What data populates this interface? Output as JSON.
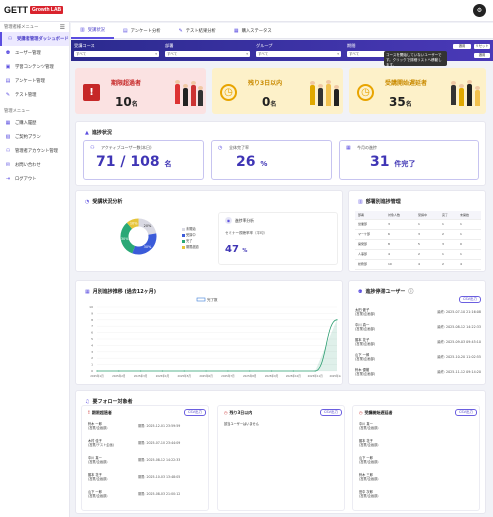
{
  "header": {
    "logo": "GETT",
    "logo_badge": "Growth LAB",
    "avatar": "⚙"
  },
  "sidebar": {
    "section1": "管理者様メニュー",
    "items": [
      {
        "label": "受講者管理ダッシュボード",
        "icon": "⚇"
      },
      {
        "label": "ユーザー管理",
        "icon": "⚉"
      },
      {
        "label": "学習コンテンツ管理",
        "icon": "▣"
      },
      {
        "label": "アンケート管理",
        "icon": "▤"
      },
      {
        "label": "テスト管理",
        "icon": "✎"
      }
    ],
    "section2": "管理メニュー",
    "items2": [
      {
        "label": "ご購入履歴",
        "icon": "▦"
      },
      {
        "label": "ご契約プラン",
        "icon": "▧"
      },
      {
        "label": "管理者アカウント管理",
        "icon": "⚇"
      },
      {
        "label": "お問い合わせ",
        "icon": "✉"
      },
      {
        "label": "ログアウト",
        "icon": "⇥"
      }
    ]
  },
  "tabs": [
    {
      "label": "受講状況",
      "icon": "▥"
    },
    {
      "label": "アンケート分析",
      "icon": "▤"
    },
    {
      "label": "テスト結果分析",
      "icon": "✎"
    },
    {
      "label": "購入ステータス",
      "icon": "▦"
    }
  ],
  "filters": {
    "course_label": "受講コース",
    "course_value": "すべて",
    "dept_label": "部署",
    "dept_value": "すべて",
    "group_label": "グループ",
    "group_value": "すべて",
    "period_label": "期間",
    "period_value": "すべて",
    "btn1": "適用",
    "btn2": "リセット",
    "btn3": "適用"
  },
  "tooltip": "コースを開始していないユーザーです。クリックで詳細リストへ移動します。",
  "kpi": [
    {
      "title": "期限超過者",
      "value": "10",
      "unit": "名",
      "icon": "!"
    },
    {
      "title": "残り3日以内",
      "value": "0",
      "unit": "名",
      "icon": "◷"
    },
    {
      "title": "受講開始遅延者",
      "value": "35",
      "unit": "名",
      "icon": "◷"
    }
  ],
  "progress": {
    "title": "進捗状況",
    "active_label": "アクティブユーザー数(本日)",
    "active_value": "71 / 108",
    "active_unit": "名",
    "completion_label": "全体完了率",
    "completion_value": "26",
    "completion_unit": "%",
    "today_label": "今月の進捗",
    "today_value": "31",
    "today_unit": "件完了"
  },
  "attendance": {
    "title": "受講状況分析",
    "donut": [
      {
        "name": "未開始",
        "value": 20,
        "color": "#d9d9e3"
      },
      {
        "name": "受講中",
        "value": 30,
        "color": "#3b5bd9"
      },
      {
        "name": "完了",
        "value": 30,
        "color": "#2aa876"
      },
      {
        "name": "期限超過",
        "value": 10,
        "color": "#e6c53a"
      }
    ],
    "labels": [
      "10%",
      "20%",
      "30%",
      "30%"
    ],
    "side_title": "進捗率分析",
    "side_label": "セミナー視聴率率（平均）",
    "side_value": "47",
    "side_unit": "%"
  },
  "dept": {
    "title": "部署別進捗管理",
    "headers": [
      "部署",
      "対象人数",
      "受講中",
      "完了",
      "未開始"
    ],
    "rows": [
      [
        "営業部",
        "3",
        "1",
        "1",
        "1"
      ],
      [
        "マーケ部",
        "6",
        "3",
        "2",
        "1"
      ],
      [
        "開発部",
        "8",
        "5",
        "3",
        "0"
      ],
      [
        "人事部",
        "4",
        "2",
        "1",
        "1"
      ],
      [
        "総務部",
        "10",
        "4",
        "2",
        "4"
      ]
    ]
  },
  "chart_data": {
    "type": "line",
    "title": "月別進捗推移 (過去12ヶ月)",
    "legend": "完了数",
    "x": [
      "2025年1月",
      "2025年2月",
      "2025年3月",
      "2025年4月",
      "2025年5月",
      "2025年6月",
      "2025年7月",
      "2025年8月",
      "2025年9月",
      "2025年10月",
      "2025年11月",
      "2025年12月"
    ],
    "values": [
      0,
      0,
      0,
      0,
      0,
      0,
      0,
      0,
      0,
      0,
      0,
      8
    ],
    "ylim": [
      0,
      10
    ],
    "yticks": [
      "10",
      "9",
      "8",
      "7",
      "6",
      "5",
      "4",
      "3",
      "2",
      "1",
      "0"
    ],
    "color": "#2a9d6f"
  },
  "inactive": {
    "title": "進捗停滞ユーザー",
    "btn": "CSV出力",
    "users": [
      {
        "name": "太田 健子",
        "sub": "(営業/企画部)",
        "date": "最終: 2025-07-10 21:16:08"
      },
      {
        "name": "中川 真一",
        "sub": "(営業/企画部)",
        "date": "最終: 2025-08-12 14:22:33"
      },
      {
        "name": "藤本 花子",
        "sub": "(営業/企画部)",
        "date": "最終: 2025-09-03 09:45:10"
      },
      {
        "name": "山下 一郎",
        "sub": "(営業/企画部)",
        "date": "最終: 2025-10-20 11:02:55"
      },
      {
        "name": "鈴木 優樹",
        "sub": "(営業/企画部)",
        "date": "最終: 2025-11-12 09:14:20"
      }
    ]
  },
  "followup": {
    "title": "要フォロー対象者",
    "cols": [
      {
        "title": "期限超過者",
        "btn": "CSV出力",
        "rows": [
          {
            "name": "鈴木 一郎",
            "sub": "(営業/企画部)",
            "date": "期限: 2025-12-01 23:59:59"
          },
          {
            "name": "木村 佳子",
            "sub": "(営業/テスト企画)",
            "date": "期限: 2025-07-10 23:44:09"
          },
          {
            "name": "中川 真一",
            "sub": "(営業/企画部)",
            "date": "期限: 2025-08-12 14:22:33"
          },
          {
            "name": "藤本 花子",
            "sub": "(営業/企画部)",
            "date": "期限: 2025-10-03 13:48:05"
          },
          {
            "name": "山下 一郎",
            "sub": "(営業/企画部)",
            "date": "期限: 2025-08-03 21:00:12"
          }
        ]
      },
      {
        "title": "残り3日以内",
        "btn": "CSV出力",
        "rows": [
          {
            "name": "該当ユーザーはいません",
            "sub": "",
            "date": ""
          }
        ]
      },
      {
        "title": "受講開始遅延者",
        "btn": "CSV出力",
        "rows": [
          {
            "name": "中川 真一",
            "sub": "(営業/企画部)",
            "date": ""
          },
          {
            "name": "藤本 花子",
            "sub": "(営業/企画部)",
            "date": ""
          },
          {
            "name": "山下 一郎",
            "sub": "(営業/企画部)",
            "date": ""
          },
          {
            "name": "鈴木 三郎",
            "sub": "(営業/企画部)",
            "date": ""
          },
          {
            "name": "田中 次郎",
            "sub": "(営業/企画部)",
            "date": ""
          }
        ]
      }
    ]
  }
}
